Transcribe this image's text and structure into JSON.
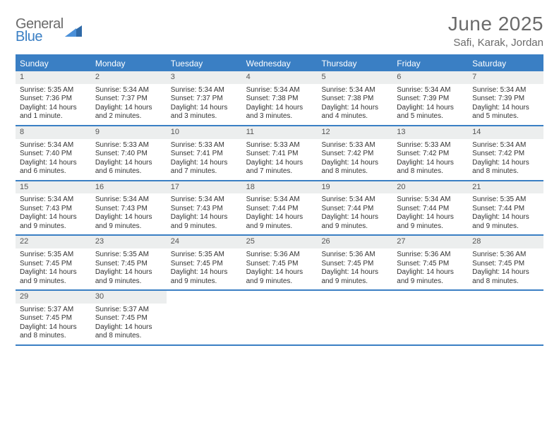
{
  "logo": {
    "line1": "General",
    "line2": "Blue"
  },
  "title": "June 2025",
  "location": "Safi, Karak, Jordan",
  "colors": {
    "accent": "#3a7fc4",
    "header_text": "#ffffff",
    "daynum_bg": "#eceeee",
    "body_text": "#333333",
    "muted": "#6b6b6b",
    "background": "#ffffff"
  },
  "day_headers": [
    "Sunday",
    "Monday",
    "Tuesday",
    "Wednesday",
    "Thursday",
    "Friday",
    "Saturday"
  ],
  "weeks": [
    [
      {
        "n": "1",
        "sr": "Sunrise: 5:35 AM",
        "ss": "Sunset: 7:36 PM",
        "dl1": "Daylight: 14 hours",
        "dl2": "and 1 minute."
      },
      {
        "n": "2",
        "sr": "Sunrise: 5:34 AM",
        "ss": "Sunset: 7:37 PM",
        "dl1": "Daylight: 14 hours",
        "dl2": "and 2 minutes."
      },
      {
        "n": "3",
        "sr": "Sunrise: 5:34 AM",
        "ss": "Sunset: 7:37 PM",
        "dl1": "Daylight: 14 hours",
        "dl2": "and 3 minutes."
      },
      {
        "n": "4",
        "sr": "Sunrise: 5:34 AM",
        "ss": "Sunset: 7:38 PM",
        "dl1": "Daylight: 14 hours",
        "dl2": "and 3 minutes."
      },
      {
        "n": "5",
        "sr": "Sunrise: 5:34 AM",
        "ss": "Sunset: 7:38 PM",
        "dl1": "Daylight: 14 hours",
        "dl2": "and 4 minutes."
      },
      {
        "n": "6",
        "sr": "Sunrise: 5:34 AM",
        "ss": "Sunset: 7:39 PM",
        "dl1": "Daylight: 14 hours",
        "dl2": "and 5 minutes."
      },
      {
        "n": "7",
        "sr": "Sunrise: 5:34 AM",
        "ss": "Sunset: 7:39 PM",
        "dl1": "Daylight: 14 hours",
        "dl2": "and 5 minutes."
      }
    ],
    [
      {
        "n": "8",
        "sr": "Sunrise: 5:34 AM",
        "ss": "Sunset: 7:40 PM",
        "dl1": "Daylight: 14 hours",
        "dl2": "and 6 minutes."
      },
      {
        "n": "9",
        "sr": "Sunrise: 5:33 AM",
        "ss": "Sunset: 7:40 PM",
        "dl1": "Daylight: 14 hours",
        "dl2": "and 6 minutes."
      },
      {
        "n": "10",
        "sr": "Sunrise: 5:33 AM",
        "ss": "Sunset: 7:41 PM",
        "dl1": "Daylight: 14 hours",
        "dl2": "and 7 minutes."
      },
      {
        "n": "11",
        "sr": "Sunrise: 5:33 AM",
        "ss": "Sunset: 7:41 PM",
        "dl1": "Daylight: 14 hours",
        "dl2": "and 7 minutes."
      },
      {
        "n": "12",
        "sr": "Sunrise: 5:33 AM",
        "ss": "Sunset: 7:42 PM",
        "dl1": "Daylight: 14 hours",
        "dl2": "and 8 minutes."
      },
      {
        "n": "13",
        "sr": "Sunrise: 5:33 AM",
        "ss": "Sunset: 7:42 PM",
        "dl1": "Daylight: 14 hours",
        "dl2": "and 8 minutes."
      },
      {
        "n": "14",
        "sr": "Sunrise: 5:34 AM",
        "ss": "Sunset: 7:42 PM",
        "dl1": "Daylight: 14 hours",
        "dl2": "and 8 minutes."
      }
    ],
    [
      {
        "n": "15",
        "sr": "Sunrise: 5:34 AM",
        "ss": "Sunset: 7:43 PM",
        "dl1": "Daylight: 14 hours",
        "dl2": "and 9 minutes."
      },
      {
        "n": "16",
        "sr": "Sunrise: 5:34 AM",
        "ss": "Sunset: 7:43 PM",
        "dl1": "Daylight: 14 hours",
        "dl2": "and 9 minutes."
      },
      {
        "n": "17",
        "sr": "Sunrise: 5:34 AM",
        "ss": "Sunset: 7:43 PM",
        "dl1": "Daylight: 14 hours",
        "dl2": "and 9 minutes."
      },
      {
        "n": "18",
        "sr": "Sunrise: 5:34 AM",
        "ss": "Sunset: 7:44 PM",
        "dl1": "Daylight: 14 hours",
        "dl2": "and 9 minutes."
      },
      {
        "n": "19",
        "sr": "Sunrise: 5:34 AM",
        "ss": "Sunset: 7:44 PM",
        "dl1": "Daylight: 14 hours",
        "dl2": "and 9 minutes."
      },
      {
        "n": "20",
        "sr": "Sunrise: 5:34 AM",
        "ss": "Sunset: 7:44 PM",
        "dl1": "Daylight: 14 hours",
        "dl2": "and 9 minutes."
      },
      {
        "n": "21",
        "sr": "Sunrise: 5:35 AM",
        "ss": "Sunset: 7:44 PM",
        "dl1": "Daylight: 14 hours",
        "dl2": "and 9 minutes."
      }
    ],
    [
      {
        "n": "22",
        "sr": "Sunrise: 5:35 AM",
        "ss": "Sunset: 7:45 PM",
        "dl1": "Daylight: 14 hours",
        "dl2": "and 9 minutes."
      },
      {
        "n": "23",
        "sr": "Sunrise: 5:35 AM",
        "ss": "Sunset: 7:45 PM",
        "dl1": "Daylight: 14 hours",
        "dl2": "and 9 minutes."
      },
      {
        "n": "24",
        "sr": "Sunrise: 5:35 AM",
        "ss": "Sunset: 7:45 PM",
        "dl1": "Daylight: 14 hours",
        "dl2": "and 9 minutes."
      },
      {
        "n": "25",
        "sr": "Sunrise: 5:36 AM",
        "ss": "Sunset: 7:45 PM",
        "dl1": "Daylight: 14 hours",
        "dl2": "and 9 minutes."
      },
      {
        "n": "26",
        "sr": "Sunrise: 5:36 AM",
        "ss": "Sunset: 7:45 PM",
        "dl1": "Daylight: 14 hours",
        "dl2": "and 9 minutes."
      },
      {
        "n": "27",
        "sr": "Sunrise: 5:36 AM",
        "ss": "Sunset: 7:45 PM",
        "dl1": "Daylight: 14 hours",
        "dl2": "and 9 minutes."
      },
      {
        "n": "28",
        "sr": "Sunrise: 5:36 AM",
        "ss": "Sunset: 7:45 PM",
        "dl1": "Daylight: 14 hours",
        "dl2": "and 8 minutes."
      }
    ],
    [
      {
        "n": "29",
        "sr": "Sunrise: 5:37 AM",
        "ss": "Sunset: 7:45 PM",
        "dl1": "Daylight: 14 hours",
        "dl2": "and 8 minutes."
      },
      {
        "n": "30",
        "sr": "Sunrise: 5:37 AM",
        "ss": "Sunset: 7:45 PM",
        "dl1": "Daylight: 14 hours",
        "dl2": "and 8 minutes."
      },
      null,
      null,
      null,
      null,
      null
    ]
  ]
}
